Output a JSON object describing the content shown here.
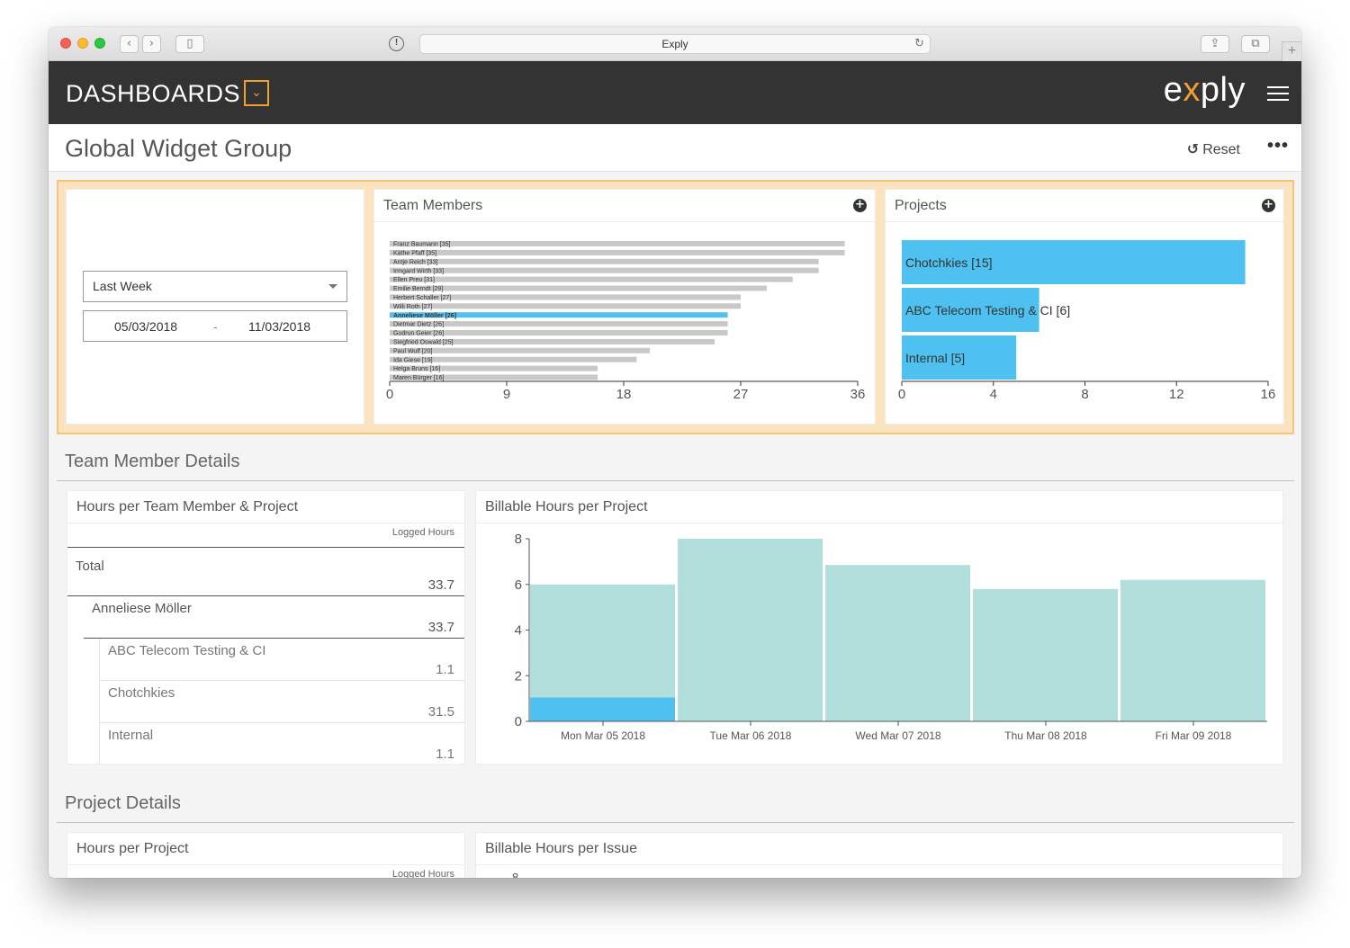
{
  "browser": {
    "url_title": "Exply"
  },
  "header": {
    "title": "DASHBOARDS",
    "logo_pre": "e",
    "logo_x": "x",
    "logo_post": "ply"
  },
  "page": {
    "title": "Global Widget Group",
    "reset_label": "Reset",
    "more_label": "•••"
  },
  "filters": {
    "period": "Last Week",
    "date_from": "05/03/2018",
    "date_sep": "-",
    "date_to": "11/03/2018"
  },
  "team_members": {
    "title": "Team Members",
    "chart_data": {
      "type": "bar",
      "orientation": "horizontal",
      "categories": [
        "Franz Baumann [35]",
        "Käthe Pfaff [35]",
        "Antje Reich [33]",
        "Irmgard Wirth [33]",
        "Ellen Preu [31]",
        "Emilie Berndt [29]",
        "Herbert Schaller [27]",
        "Willi Roth [27]",
        "Anneliese Möller [26]",
        "Dietmar Dietz [26]",
        "Gudrun Geier [26]",
        "Siegfried Oswald [25]",
        "Paul Wulf [20]",
        "Ida Giese [19]",
        "Helga Bruns [16]",
        "Maren Bürger [16]"
      ],
      "values": [
        35,
        35,
        33,
        33,
        31,
        29,
        27,
        27,
        26,
        26,
        26,
        25,
        20,
        19,
        16,
        16
      ],
      "highlight_index": 8,
      "xlim": [
        0,
        36
      ],
      "xticks": [
        0,
        9,
        18,
        27,
        36
      ],
      "colors": {
        "bar": "#c8c8c8",
        "highlight": "#4fc1f0"
      }
    }
  },
  "projects": {
    "title": "Projects",
    "chart_data": {
      "type": "bar",
      "orientation": "horizontal",
      "categories": [
        "Chotchkies [15]",
        "ABC Telecom Testing & CI [6]",
        "Internal [5]"
      ],
      "values": [
        15,
        6,
        5
      ],
      "xlim": [
        0,
        16
      ],
      "xticks": [
        0,
        4,
        8,
        12,
        16
      ],
      "colors": {
        "bar": "#4fc1f0"
      }
    }
  },
  "team_member_details": {
    "section_title": "Team Member Details",
    "hours_table": {
      "title": "Hours per Team Member & Project",
      "column": "Logged Hours",
      "rows": [
        {
          "label": "Total",
          "value": "33.7"
        },
        {
          "label": "Anneliese Möller",
          "value": "33.7"
        },
        {
          "label": "ABC Telecom Testing & CI",
          "value": "1.1"
        },
        {
          "label": "Chotchkies",
          "value": "31.5"
        },
        {
          "label": "Internal",
          "value": "1.1"
        }
      ]
    },
    "billable": {
      "title": "Billable Hours per Project",
      "chart_data": {
        "type": "bar",
        "stacked": true,
        "categories": [
          "Mon Mar 05 2018",
          "Tue Mar 06 2018",
          "Wed Mar 07 2018",
          "Thu Mar 08 2018",
          "Fri Mar 09 2018"
        ],
        "series": [
          {
            "values": [
              1.05,
              0,
              0,
              0,
              0
            ]
          },
          {
            "values": [
              4.95,
              8.0,
              6.85,
              5.8,
              6.2
            ]
          }
        ],
        "ylim": [
          0,
          8
        ],
        "yticks": [
          0,
          2,
          4,
          6,
          8
        ],
        "colors": [
          "#4fc1f0",
          "#b2dfdb"
        ]
      }
    }
  },
  "project_details": {
    "section_title": "Project Details",
    "hours_title": "Hours per Project",
    "hours_column": "Logged Hours",
    "issue_title": "Billable Hours per Issue",
    "issue_first_tick": "8"
  }
}
